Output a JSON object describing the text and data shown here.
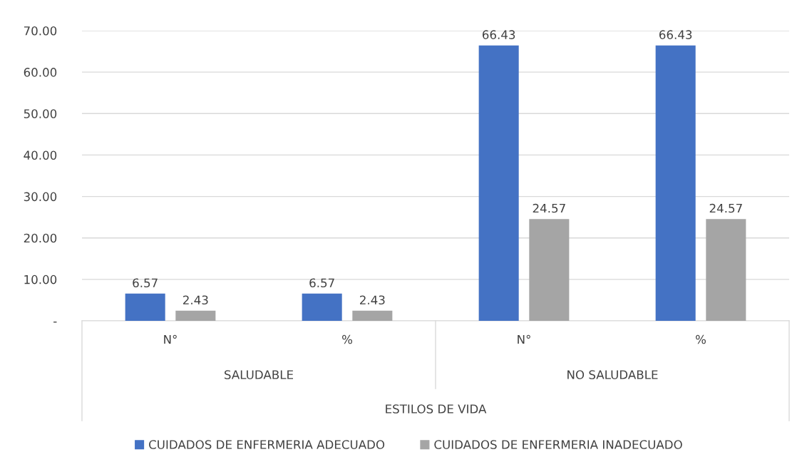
{
  "chart_data": {
    "type": "bar",
    "categories": [
      "N°",
      "%",
      "N°",
      "%"
    ],
    "annotations": [
      "SALUDABLE",
      "NO SALUDABLE",
      "ESTILOS DE VIDA"
    ],
    "series": [
      {
        "name": "CUIDADOS DE ENFERMERIA ADECUADO",
        "color": "#4472c4",
        "values": [
          6.57,
          6.57,
          66.43,
          66.43
        ]
      },
      {
        "name": "CUIDADOS DE ENFERMERIA INADECUADO",
        "color": "#a5a5a5",
        "values": [
          2.43,
          2.43,
          24.57,
          24.57
        ]
      }
    ],
    "ylim": [
      0,
      70
    ],
    "yticks": [
      {
        "value": 0,
        "label": "-"
      },
      {
        "value": 10,
        "label": "10.00"
      },
      {
        "value": 20,
        "label": "20.00"
      },
      {
        "value": 30,
        "label": "30.00"
      },
      {
        "value": 40,
        "label": "40.00"
      },
      {
        "value": 50,
        "label": "50.00"
      },
      {
        "value": 60,
        "label": "60.00"
      },
      {
        "value": 70,
        "label": "70.00"
      }
    ],
    "grid": "y",
    "data_labels": true,
    "legend": "bottom"
  }
}
